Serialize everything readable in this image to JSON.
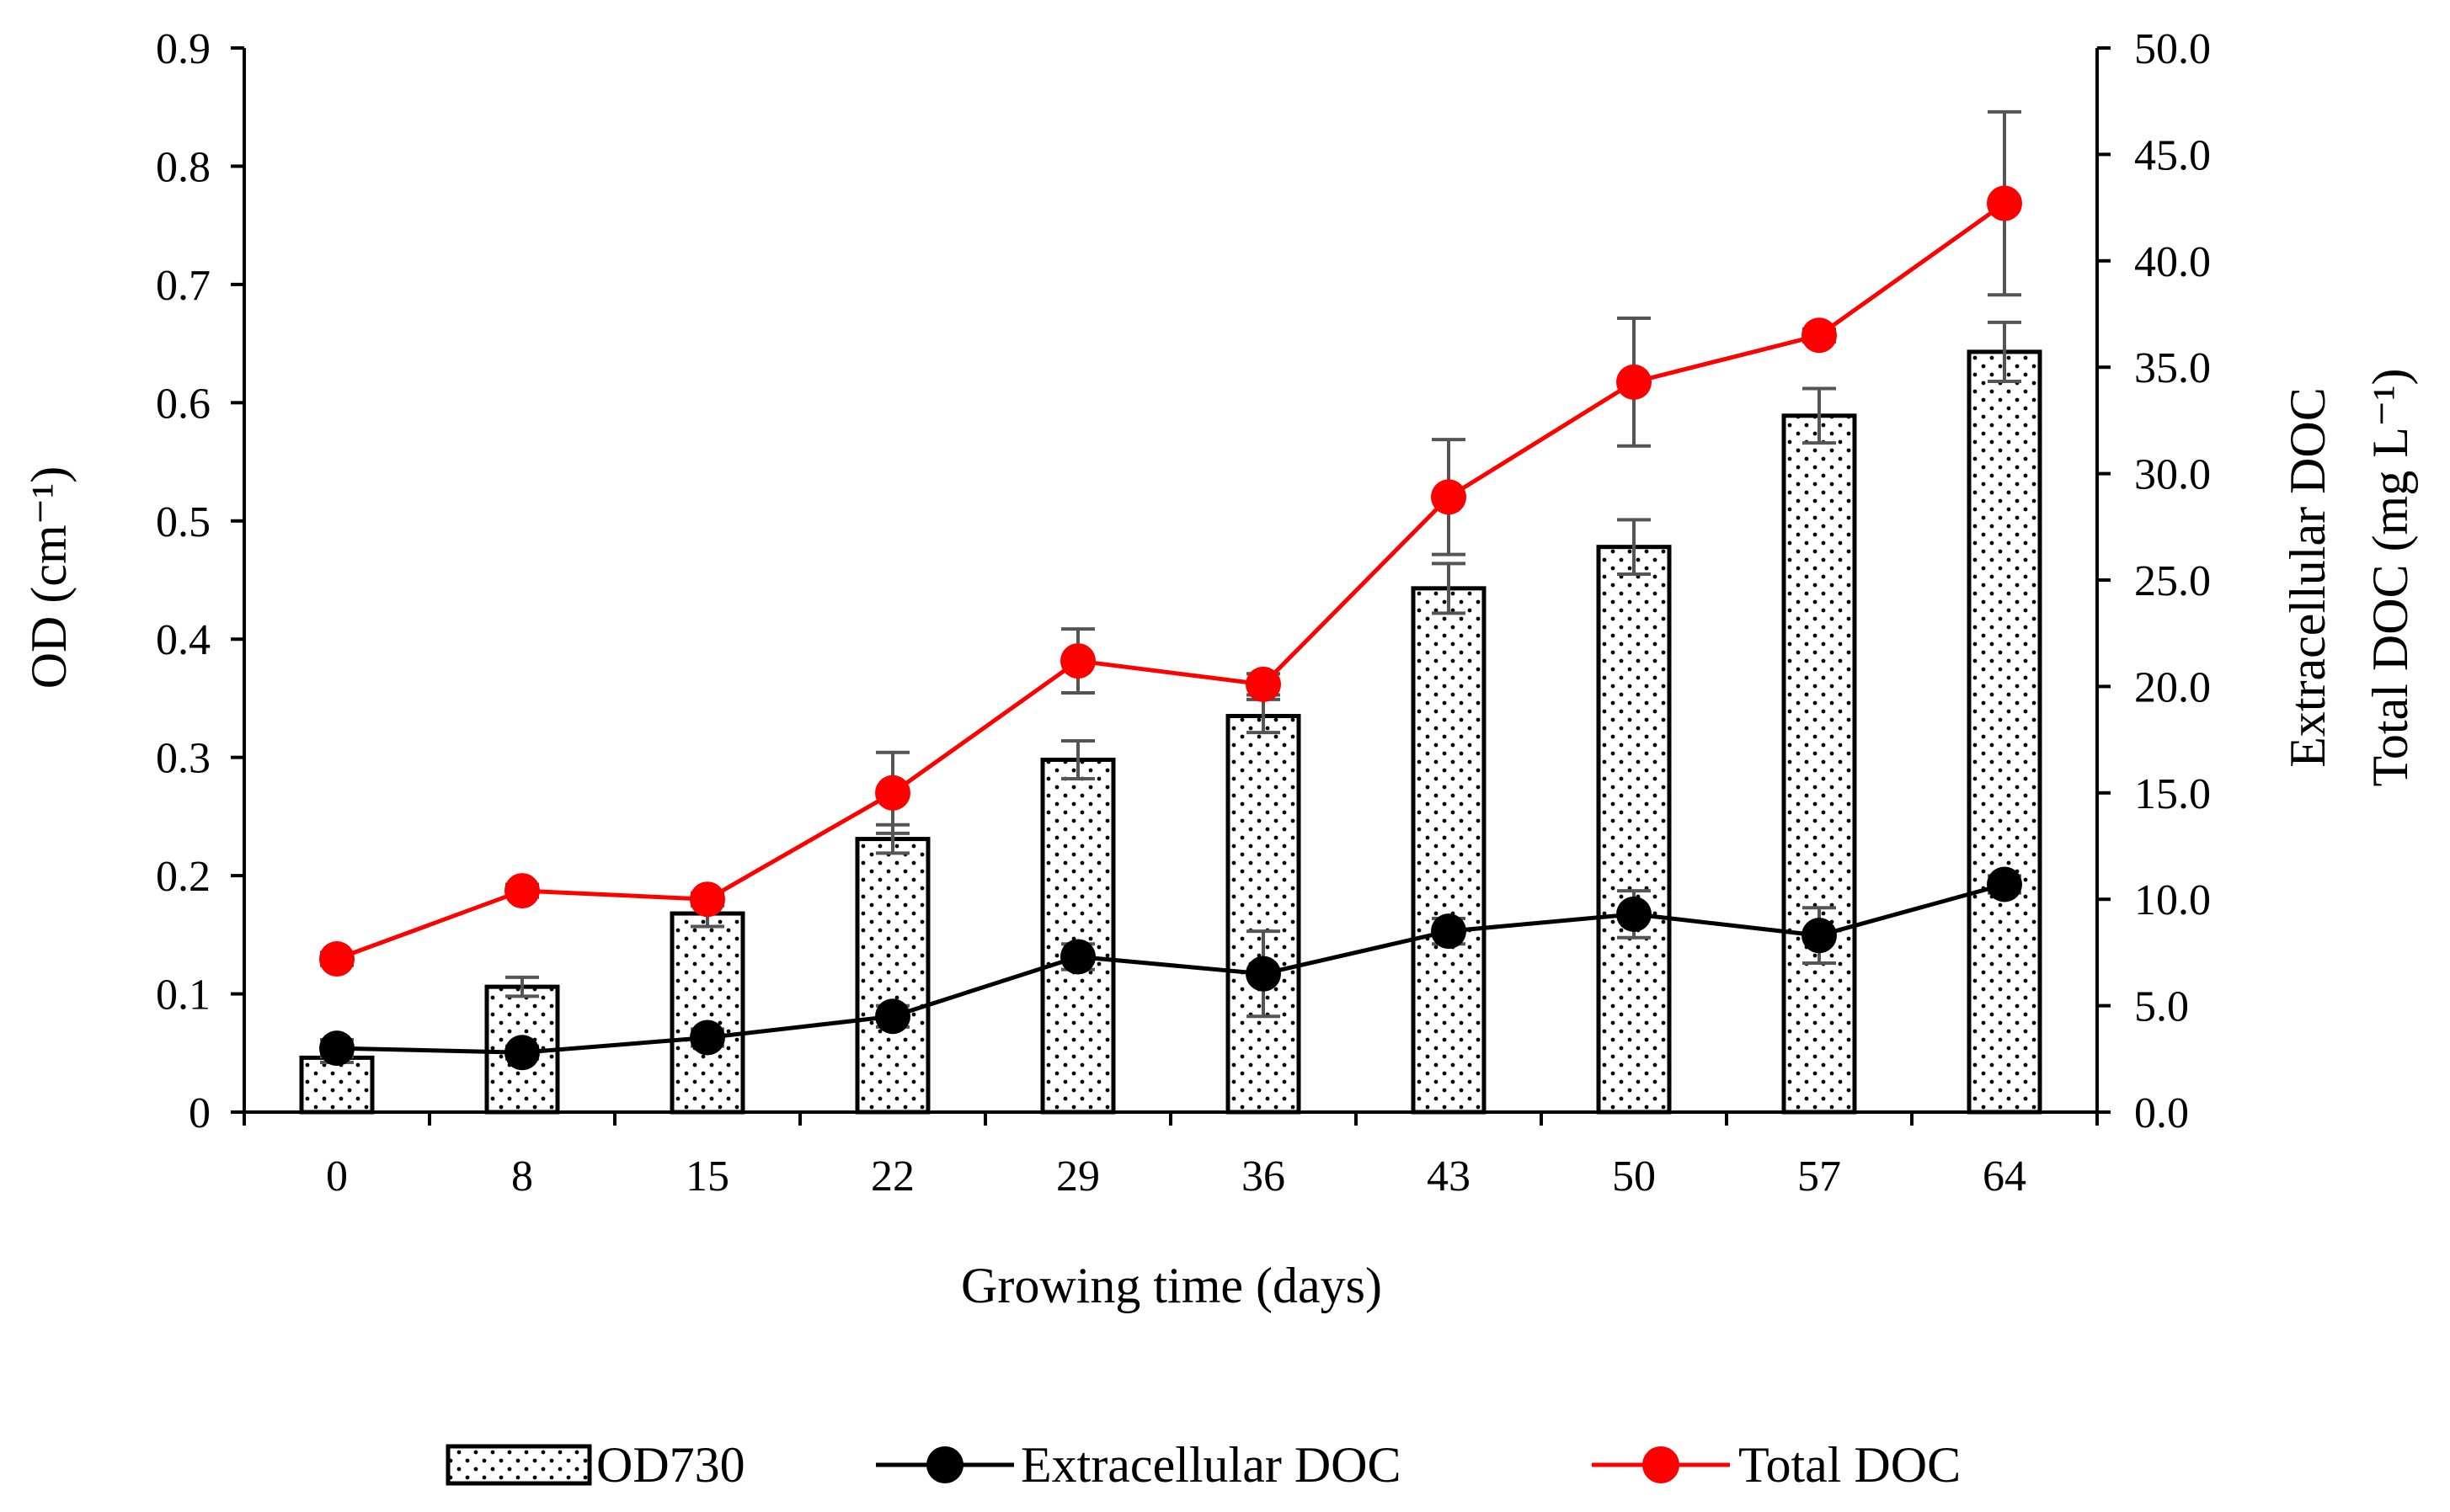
{
  "chart_data": {
    "type": "bar",
    "categories": [
      "0",
      "8",
      "15",
      "22",
      "29",
      "36",
      "43",
      "50",
      "57",
      "64"
    ],
    "xlabel": "Growing time (days)",
    "ylabel_left": "OD (cm⁻¹)",
    "ylabel_right_line1": "Extracellular DOC",
    "ylabel_right_line2": "Total DOC  (mg L⁻¹)",
    "ylim_left": [
      0,
      0.9
    ],
    "yticks_left": [
      "0",
      "0.1",
      "0.2",
      "0.3",
      "0.4",
      "0.5",
      "0.6",
      "0.7",
      "0.8",
      "0.9"
    ],
    "ylim_right": [
      0,
      50
    ],
    "yticks_right": [
      "0.0",
      "5.0",
      "10.0",
      "15.0",
      "20.0",
      "25.0",
      "30.0",
      "35.0",
      "40.0",
      "45.0",
      "50.0"
    ],
    "grid": false,
    "legend_position": "bottom",
    "series": [
      {
        "name": "OD730",
        "kind": "bar",
        "axis": "left",
        "values": [
          0.046,
          0.106,
          0.168,
          0.231,
          0.298,
          0.335,
          0.443,
          0.478,
          0.589,
          0.643
        ],
        "errors": [
          0.004,
          0.008,
          0.011,
          0.012,
          0.016,
          0.014,
          0.021,
          0.023,
          0.023,
          0.025
        ],
        "color": "#000000"
      },
      {
        "name": "Extracellular DOC",
        "kind": "line",
        "axis": "right",
        "values": [
          3.0,
          2.8,
          3.5,
          4.5,
          7.3,
          6.5,
          8.5,
          9.3,
          8.3,
          10.7
        ],
        "errors": [
          0.4,
          0.3,
          0.4,
          0.5,
          0.6,
          2.0,
          0.6,
          1.1,
          1.3,
          0.4
        ],
        "color": "#000000"
      },
      {
        "name": "Total DOC",
        "kind": "line",
        "axis": "right",
        "values": [
          7.2,
          10.4,
          10.0,
          15.0,
          21.2,
          20.1,
          28.9,
          34.3,
          36.5,
          42.7
        ],
        "errors": [
          0.3,
          0.3,
          0.3,
          1.9,
          1.5,
          0.5,
          2.7,
          3.0,
          0.3,
          4.3
        ],
        "color": "#ff0000"
      }
    ]
  }
}
